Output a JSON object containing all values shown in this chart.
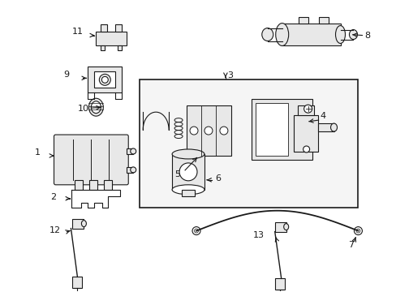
{
  "bg_color": "#ffffff",
  "line_color": "#1a1a1a",
  "fill_light": "#e8e8e8",
  "fill_mid": "#d0d0d0"
}
